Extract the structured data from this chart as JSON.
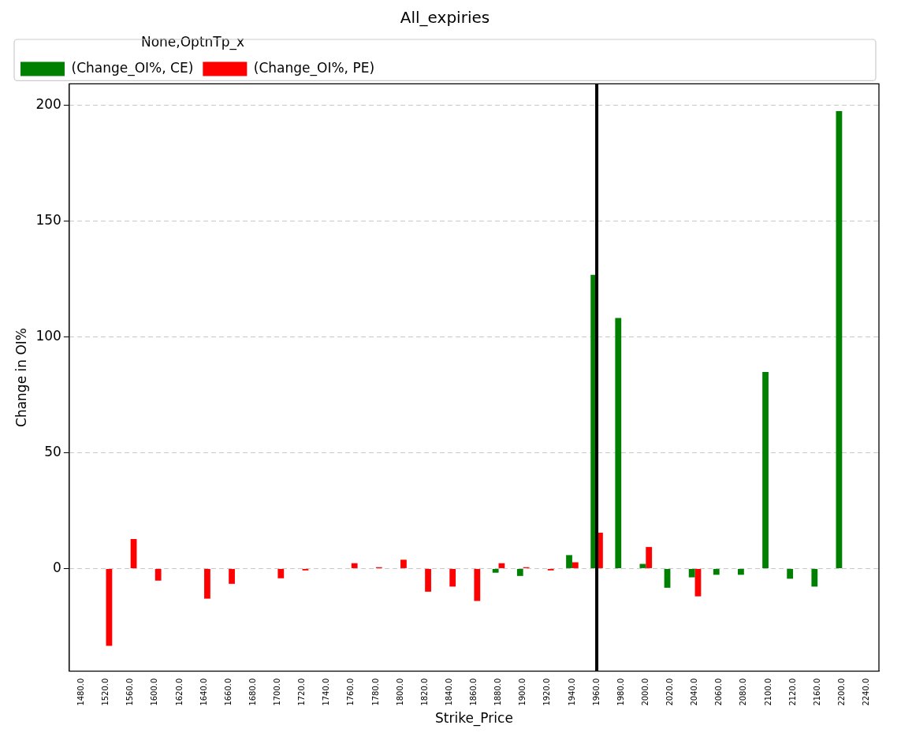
{
  "chart_data": {
    "type": "bar",
    "title": "All_expiries",
    "xlabel": "Strike_Price",
    "ylabel": "Change in OI%",
    "legend_title": "None,OptnTp_x",
    "categories": [
      "1480.0",
      "1520.0",
      "1560.0",
      "1600.0",
      "1620.0",
      "1640.0",
      "1660.0",
      "1680.0",
      "1700.0",
      "1720.0",
      "1740.0",
      "1760.0",
      "1780.0",
      "1800.0",
      "1820.0",
      "1840.0",
      "1860.0",
      "1880.0",
      "1900.0",
      "1920.0",
      "1940.0",
      "1960.0",
      "1980.0",
      "2000.0",
      "2020.0",
      "2040.0",
      "2060.0",
      "2080.0",
      "2100.0",
      "2120.0",
      "2160.0",
      "2200.0",
      "2240.0"
    ],
    "series": [
      {
        "name": "(Change_OI%, CE)",
        "color": "#008000",
        "values": [
          null,
          null,
          null,
          null,
          null,
          null,
          null,
          null,
          null,
          null,
          null,
          null,
          null,
          null,
          null,
          null,
          null,
          -1.8,
          -3.2,
          null,
          5.8,
          126.8,
          108.2,
          2,
          -8.3,
          -3.8,
          -2.7,
          -2.7,
          84.9,
          -4.4,
          -7.8,
          197.5,
          null
        ]
      },
      {
        "name": "(Change_OI%, PE)",
        "color": "#ff0000",
        "values": [
          null,
          -33.4,
          12.7,
          -5.2,
          null,
          -13,
          -6.6,
          null,
          -4.2,
          -0.8,
          null,
          2.3,
          0.6,
          3.8,
          -10,
          -7.8,
          -14,
          2.3,
          0.6,
          -0.8,
          2.7,
          15.5,
          null,
          9.3,
          null,
          -12,
          null,
          null,
          null,
          null,
          null,
          null,
          null
        ]
      }
    ],
    "ylim": [
      -44.3,
      209.3
    ],
    "yticks": [
      0,
      50,
      100,
      150,
      200
    ],
    "grid": "y",
    "legend": "top left",
    "ref_lines": [
      {
        "axis": "x",
        "value": "1960.0",
        "color": "#000000"
      }
    ]
  }
}
